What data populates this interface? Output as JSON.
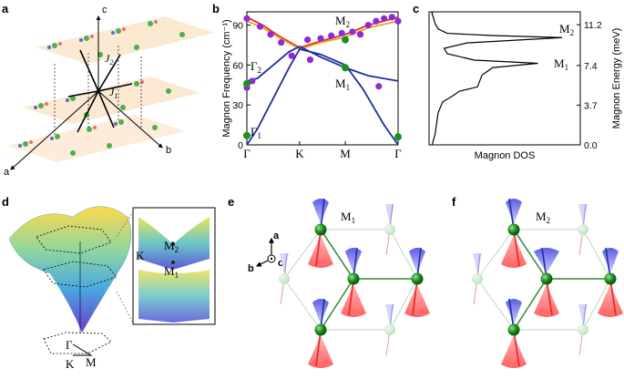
{
  "panels": {
    "a": "a",
    "b": "b",
    "c": "c",
    "d": "d",
    "e": "e",
    "f": "f"
  },
  "panel_a": {
    "axis_c": "c",
    "axis_b": "b",
    "axis_a": "a",
    "j1": "J",
    "j1_sub": "1",
    "j2": "J",
    "j2_sub": "2"
  },
  "chart_data": [
    {
      "type": "line",
      "panel": "b",
      "ylabel": "Magnon Frequency (cm⁻¹)",
      "ylim": [
        0,
        100
      ],
      "yticks": [
        "0",
        "30",
        "60",
        "90"
      ],
      "ytick_values": [
        0,
        30,
        60,
        90
      ],
      "xticks": [
        "Γ",
        "K",
        "M",
        "Γ"
      ],
      "xtick_positions": [
        0,
        1,
        1.866,
        2.866
      ],
      "annotations": [
        {
          "text": "M",
          "sub": "2"
        },
        {
          "text": "Γ",
          "sub": "2"
        },
        {
          "text": "M",
          "sub": "1"
        },
        {
          "text": "Γ",
          "sub": "1"
        }
      ],
      "series": [
        {
          "color": "#e8261c",
          "x": [
            0,
            0.3,
            0.6,
            1.0,
            1.4,
            1.866,
            2.3,
            2.866
          ],
          "y": [
            96,
            90,
            82,
            73,
            78,
            83,
            90,
            96
          ]
        },
        {
          "color": "#e8a21c",
          "x": [
            0,
            0.3,
            0.6,
            1.0,
            1.4,
            1.866,
            2.3,
            2.866
          ],
          "y": [
            93,
            88,
            81,
            72,
            77,
            81,
            88,
            93
          ]
        },
        {
          "color": "#1b2fa3",
          "x": [
            0,
            0.2,
            0.5,
            0.8,
            1.0,
            1.4,
            1.866,
            2.3,
            2.866
          ],
          "y": [
            48,
            50,
            60,
            70,
            74,
            66,
            58,
            52,
            48
          ]
        },
        {
          "color": "#1b2fa3",
          "x": [
            0,
            0.2,
            0.5,
            0.8,
            1.0,
            1.4,
            1.866,
            2.2,
            2.6,
            2.866
          ],
          "y": [
            0,
            12,
            35,
            58,
            72,
            68,
            60,
            42,
            15,
            0
          ]
        }
      ],
      "points_purple": {
        "x": [
          0,
          0.25,
          0.45,
          0.65,
          1.15,
          1.4,
          1.6,
          1.8,
          2.0,
          2.15,
          2.3,
          2.45,
          2.6,
          2.75,
          2.866,
          0,
          0.1,
          0.85,
          1.2,
          2.5
        ],
        "y": [
          95,
          89,
          83,
          77,
          79,
          80,
          82,
          84,
          85,
          83,
          90,
          93,
          95,
          96,
          93,
          43,
          48,
          67,
          64,
          44
        ]
      },
      "points_green": {
        "x": [
          0,
          1.866,
          1.866,
          2.866,
          0
        ],
        "y": [
          46,
          79,
          58,
          6,
          7
        ]
      }
    },
    {
      "type": "line",
      "panel": "c",
      "xlabel": "Magnon DOS",
      "ylabel": "Magnon Energy (meV)",
      "ylim": [
        0,
        12.4
      ],
      "yticks": [
        "0.0",
        "3.7",
        "7.4",
        "11.2"
      ],
      "ytick_values": [
        0,
        3.7,
        7.4,
        11.2
      ],
      "annotations": [
        {
          "text": "M",
          "sub": "2"
        },
        {
          "text": "M",
          "sub": "1"
        }
      ],
      "dos": {
        "e": [
          0,
          1,
          2,
          3,
          4,
          4.6,
          5,
          5.4,
          6.5,
          7.2,
          7.6,
          7.9,
          8.1,
          8.5,
          9.0,
          9.5,
          10.0,
          10.2,
          10.4,
          10.8,
          11.3,
          11.8,
          12.2,
          12.4
        ],
        "d": [
          0.02,
          0.04,
          0.05,
          0.06,
          0.09,
          0.16,
          0.2,
          0.32,
          0.35,
          0.42,
          0.72,
          0.3,
          0.24,
          0.12,
          0.1,
          0.25,
          0.88,
          0.4,
          0.12,
          0.06,
          0.04,
          0.03,
          0.02,
          0.02
        ]
      }
    }
  ],
  "panel_d": {
    "m2": "M",
    "m2_sub": "2",
    "m1": "M",
    "m1_sub": "1",
    "k_side": "K",
    "gamma": "Γ",
    "k_bz": "K",
    "m_bz": "M"
  },
  "panel_e": {
    "title": "M",
    "title_sub": "1",
    "axis_a": "a",
    "axis_b": "b",
    "axis_c": "c"
  },
  "panel_f": {
    "title": "M",
    "title_sub": "2"
  },
  "colors": {
    "blue_band": "#1b2fa3",
    "red_band": "#e8261c",
    "orange_band": "#e8a21c",
    "purple_point": "#8e2bd6",
    "green_point": "#1d8f1d"
  }
}
